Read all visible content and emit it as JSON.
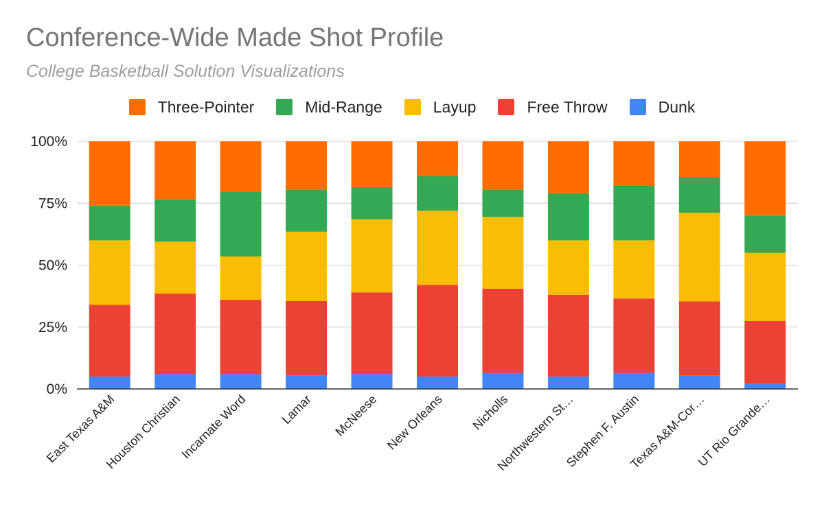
{
  "chart_data": {
    "type": "bar",
    "stacked": true,
    "normalized": true,
    "title": "Conference-Wide Made Shot Profile",
    "subtitle": "College Basketball Solution Visualizations",
    "xlabel": "",
    "ylabel": "",
    "ylim": [
      0,
      100
    ],
    "yticks": [
      "0%",
      "25%",
      "50%",
      "75%",
      "100%"
    ],
    "grid": true,
    "legend_position": "top",
    "categories": [
      "East Texas A&M",
      "Houston Christian",
      "Incarnate Word",
      "Lamar",
      "McNeese",
      "New Orleans",
      "Nicholls",
      "Northwestern St…",
      "Stephen F. Austin",
      "Texas A&M-Cor…",
      "UT Rio Grande…"
    ],
    "series": [
      {
        "name": "Dunk",
        "color": "#4285f4",
        "values": [
          5,
          6,
          6,
          5.5,
          6,
          5,
          6.5,
          5,
          6.5,
          5.5,
          2
        ]
      },
      {
        "name": "Free Throw",
        "color": "#ea4335",
        "values": [
          29,
          32.5,
          30,
          30,
          33,
          37,
          34,
          33,
          30,
          30,
          25.5
        ]
      },
      {
        "name": "Layup",
        "color": "#fbbc04",
        "values": [
          26,
          21,
          17.5,
          28,
          29.5,
          30,
          29,
          22,
          23.5,
          36,
          27.5
        ]
      },
      {
        "name": "Mid-Range",
        "color": "#34a853",
        "values": [
          14,
          17,
          26,
          17,
          13,
          14,
          11,
          19,
          22,
          14.5,
          15
        ]
      },
      {
        "name": "Three-Pointer",
        "color": "#ff6d01",
        "values": [
          26,
          23.5,
          20.5,
          19.5,
          18.5,
          14,
          19.5,
          21,
          18,
          14.5,
          30
        ]
      }
    ]
  }
}
